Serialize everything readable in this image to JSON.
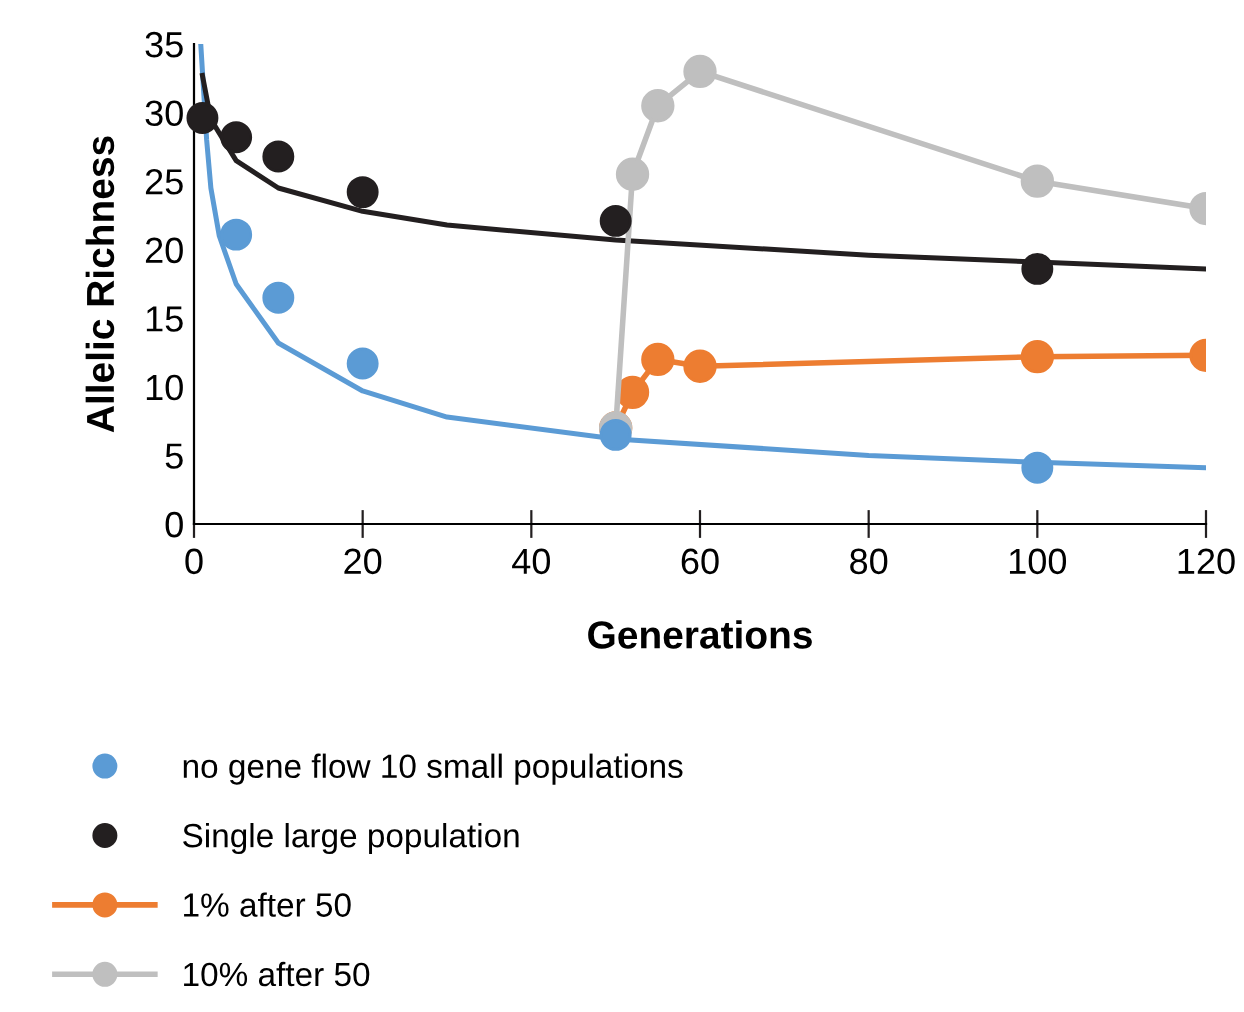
{
  "chart_data": {
    "type": "scatter",
    "xlabel": "Generations",
    "ylabel": "Allelic Richness",
    "xlim": [
      0,
      120
    ],
    "ylim": [
      0,
      35
    ],
    "xticks": [
      0,
      20,
      40,
      60,
      80,
      100,
      120
    ],
    "yticks": [
      0,
      5,
      10,
      15,
      20,
      25,
      30,
      35
    ],
    "grid": false,
    "legend": "bottom",
    "marker": "circle",
    "series": [
      {
        "name": "no gene flow 10 small populations",
        "color": "#5b9bd5",
        "x": [
          5,
          10,
          20,
          50,
          100
        ],
        "values": [
          21.1,
          16.5,
          11.7,
          6.5,
          4.1
        ]
      },
      {
        "name": "Single large population",
        "color": "#231f20",
        "x": [
          1,
          5,
          10,
          20,
          50,
          100
        ],
        "values": [
          29.6,
          28.2,
          26.8,
          24.2,
          22.1,
          18.6
        ]
      },
      {
        "name": "1% after 50",
        "type": "line",
        "color": "#ed7d31",
        "x": [
          50,
          52,
          55,
          60,
          100,
          120
        ],
        "values": [
          7.0,
          9.6,
          12.0,
          11.5,
          12.2,
          12.3
        ]
      },
      {
        "name": "10% after 50",
        "type": "line",
        "color": "#bfbfbf",
        "x": [
          50,
          52,
          55,
          60,
          100,
          120
        ],
        "values": [
          7.0,
          25.5,
          30.5,
          33.0,
          25.0,
          23.0
        ]
      },
      {
        "type": "line",
        "marker": "none",
        "color": "#5b9bd5",
        "x": [
          0.8,
          1.5,
          2,
          3,
          5,
          10,
          20,
          30,
          50,
          80,
          100,
          120
        ],
        "values": [
          35,
          28,
          24.5,
          21,
          17.5,
          13.2,
          9.7,
          7.8,
          6.2,
          5.0,
          4.5,
          4.1
        ]
      },
      {
        "type": "line",
        "marker": "none",
        "color": "#231f20",
        "x": [
          1,
          2,
          5,
          10,
          20,
          30,
          50,
          80,
          100,
          120
        ],
        "values": [
          32.7,
          29.5,
          26.5,
          24.5,
          22.8,
          21.8,
          20.7,
          19.6,
          19.1,
          18.6
        ]
      }
    ]
  }
}
